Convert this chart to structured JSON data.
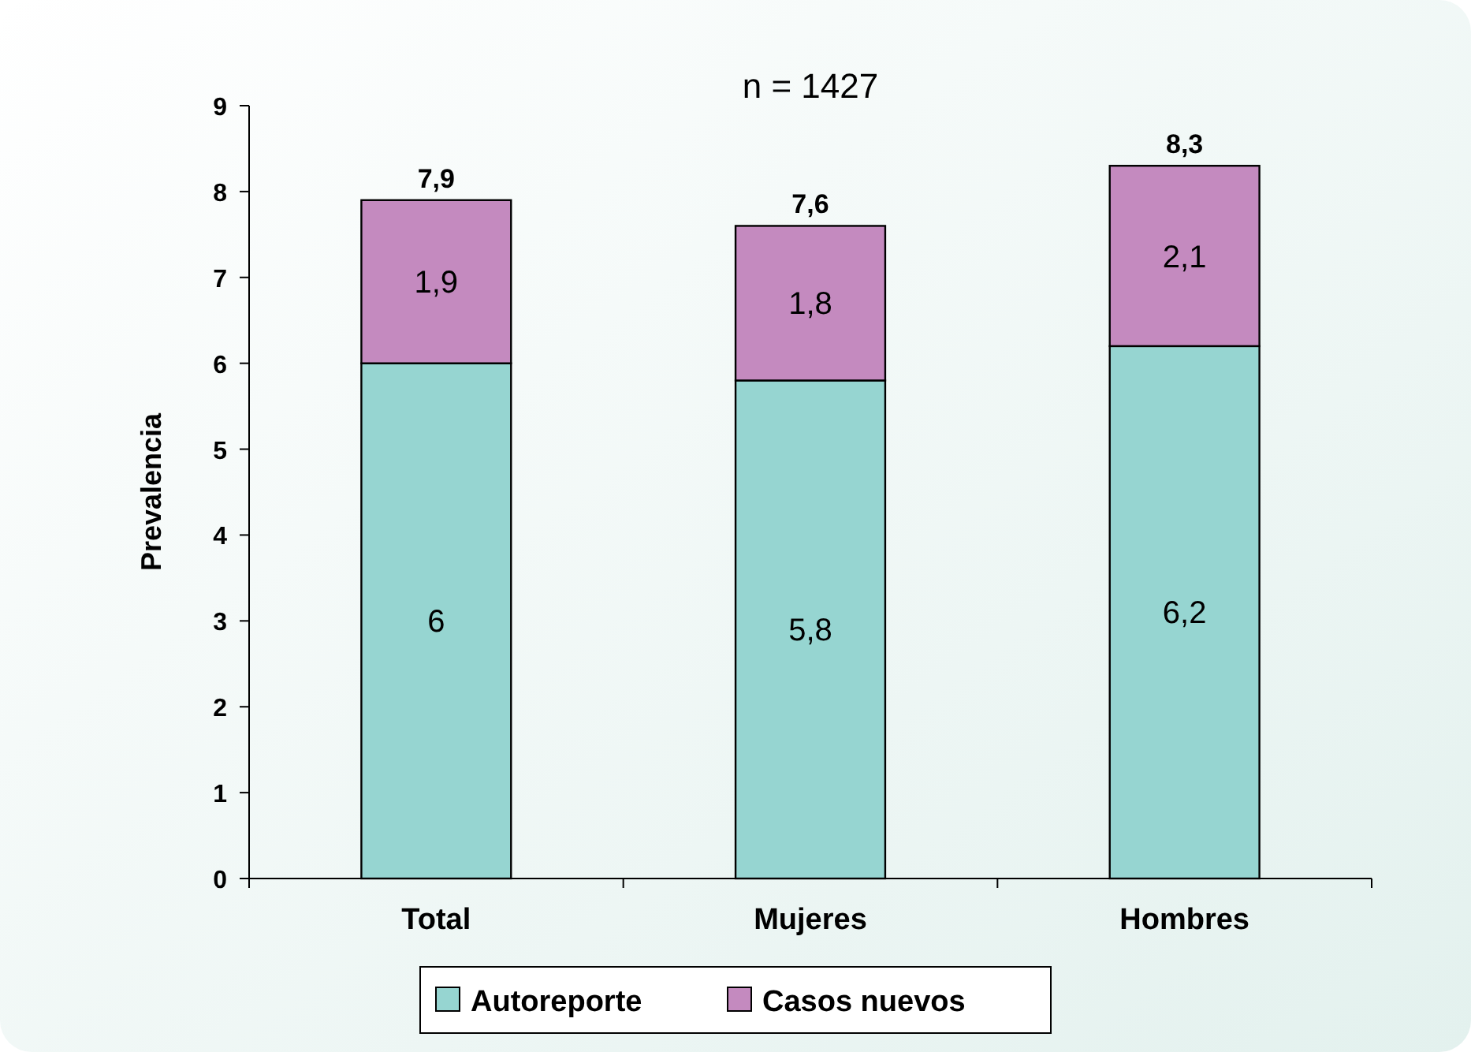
{
  "chart_data": {
    "type": "bar",
    "stacked": true,
    "title": "n = 1427",
    "ylabel": "Prevalencia",
    "categories": [
      "Total",
      "Mujeres",
      "Hombres"
    ],
    "series": [
      {
        "name": "Autoreporte",
        "color": "#96d5d1",
        "values": [
          6,
          5.8,
          6.2
        ],
        "value_labels": [
          "6",
          "5,8",
          "6,2"
        ]
      },
      {
        "name": "Casos nuevos",
        "color": "#c48abf",
        "values": [
          1.9,
          1.8,
          2.1
        ],
        "value_labels": [
          "1,9",
          "1,8",
          "2,1"
        ]
      }
    ],
    "totals": [
      "7,9",
      "7,6",
      "8,3"
    ],
    "ylim": [
      0,
      9
    ],
    "yticks": [
      0,
      1,
      2,
      3,
      4,
      5,
      6,
      7,
      8,
      9
    ],
    "grid": false,
    "legend": "bottom"
  }
}
